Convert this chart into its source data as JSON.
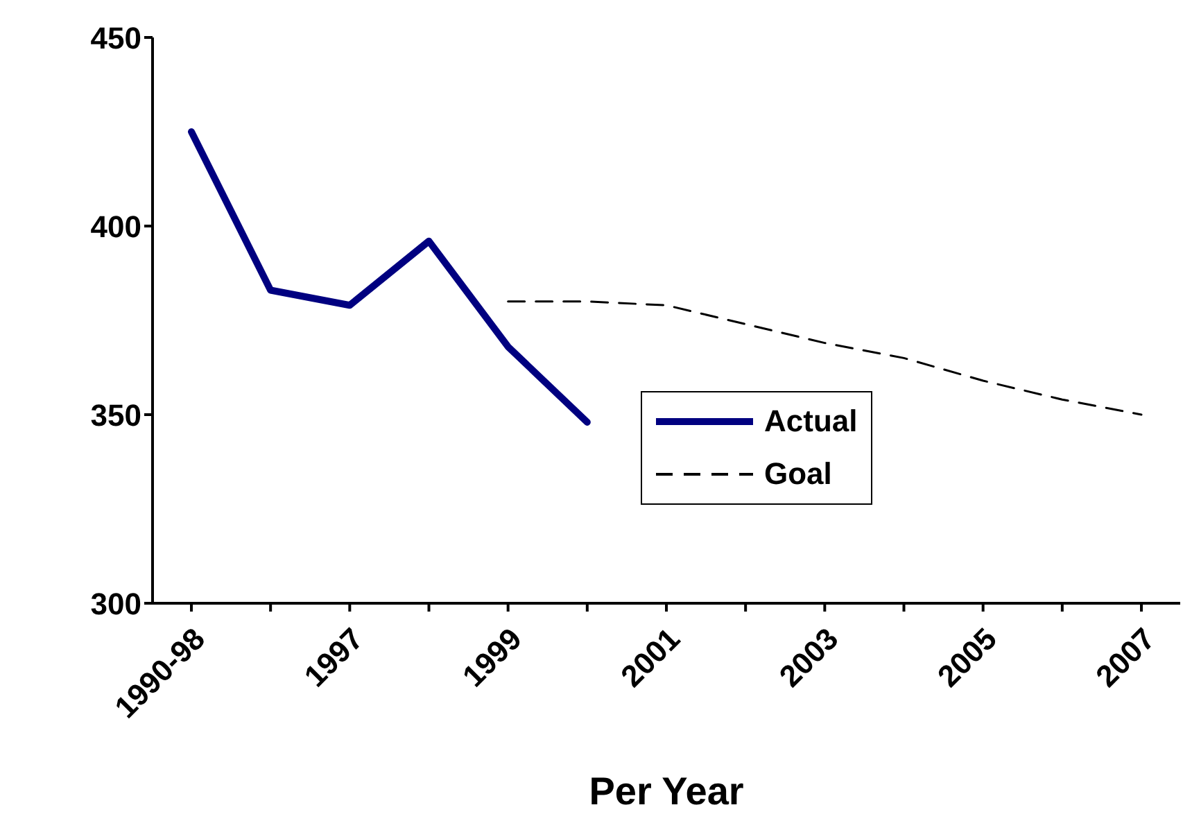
{
  "chart_data": {
    "type": "line",
    "xlabel": "Per Year",
    "categories": [
      "1990-98",
      null,
      "1997",
      null,
      "1999",
      null,
      "2001",
      null,
      "2003",
      null,
      "2005",
      null,
      "2007"
    ],
    "series": [
      {
        "name": "Actual",
        "color": "#000080",
        "line_style": "solid",
        "values": [
          425,
          383,
          379,
          396,
          368,
          348,
          null,
          null,
          null,
          null,
          null,
          null,
          null
        ]
      },
      {
        "name": "Goal",
        "color": "#000000",
        "line_style": "dashed",
        "values": [
          null,
          null,
          null,
          null,
          380,
          380,
          379,
          374,
          369,
          365,
          359,
          354,
          350
        ]
      }
    ],
    "ylim": [
      300,
      450
    ],
    "yticks": [
      300,
      350,
      400,
      450
    ],
    "grid": false,
    "legend": "right",
    "marker": "none"
  }
}
